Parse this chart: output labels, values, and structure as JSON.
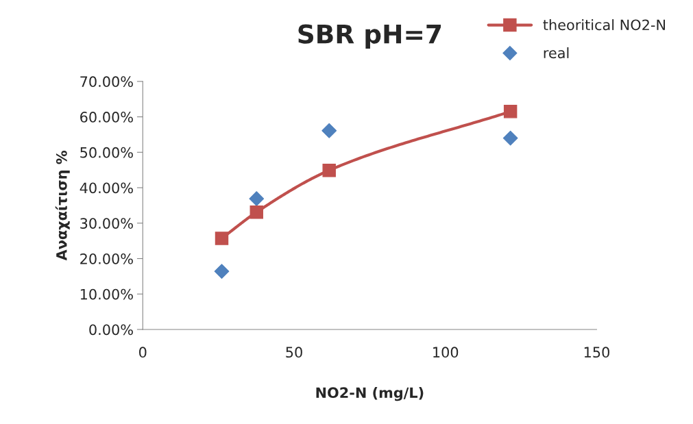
{
  "chart_data": {
    "type": "scatter",
    "title": "SBR pH=7",
    "xlabel": "NO2-N (mg/L)",
    "ylabel": "Αναχαίτιση %",
    "xlim": [
      0,
      150
    ],
    "xticks": [
      0,
      50,
      100,
      150
    ],
    "ylim": [
      0,
      0.7
    ],
    "yticks": [
      {
        "value": 0,
        "label": "0.00%"
      },
      {
        "value": 0.1,
        "label": "10.00%"
      },
      {
        "value": 0.2,
        "label": "20.00%"
      },
      {
        "value": 0.3,
        "label": "30.00%"
      },
      {
        "value": 0.4,
        "label": "40.00%"
      },
      {
        "value": 0.5,
        "label": "50.00%"
      },
      {
        "value": 0.6,
        "label": "60.00%"
      },
      {
        "value": 0.7,
        "label": "70.00%"
      }
    ],
    "grid": false,
    "legend": "top right",
    "series": [
      {
        "name": "theoritical NO2-N",
        "type": "line",
        "marker": "square",
        "color": "#c0504d",
        "x": [
          26.1,
          37.6,
          61.6,
          121.5
        ],
        "values": [
          0.257,
          0.331,
          0.449,
          0.615
        ]
      },
      {
        "name": "real",
        "marker": "diamond",
        "color": "#4f81bd",
        "x": [
          26.1,
          37.6,
          61.6,
          121.5
        ],
        "values": [
          0.164,
          0.369,
          0.561,
          0.54
        ]
      }
    ]
  }
}
